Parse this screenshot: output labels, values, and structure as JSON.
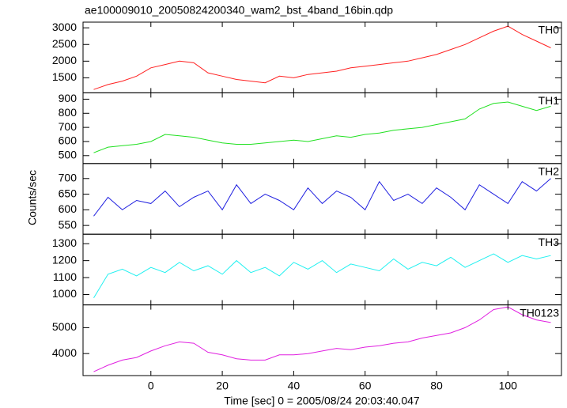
{
  "title": "ae100009010_20050824200340_wam2_bst_4band_16bin.qdp",
  "x_label": "Time [sec] 0 = 2005/08/24 20:03:40.047",
  "y_label": "Counts/sec",
  "chart_data": [
    {
      "type": "line",
      "label": "TH0",
      "color": "#ff2020",
      "x": [
        -16,
        -12,
        -8,
        -4,
        0,
        4,
        8,
        12,
        16,
        20,
        24,
        28,
        32,
        36,
        40,
        44,
        48,
        52,
        56,
        60,
        64,
        68,
        72,
        76,
        80,
        84,
        88,
        92,
        96,
        100,
        104,
        108,
        112
      ],
      "values": [
        1150,
        1300,
        1400,
        1550,
        1800,
        1900,
        2000,
        1950,
        1650,
        1550,
        1450,
        1400,
        1350,
        1550,
        1500,
        1600,
        1650,
        1700,
        1800,
        1850,
        1900,
        1950,
        2000,
        2100,
        2200,
        2350,
        2500,
        2700,
        2900,
        3050,
        2800,
        2600,
        2400
      ],
      "xlim": [
        -19,
        115
      ],
      "ylim": [
        1050,
        3170
      ],
      "yticks": [
        1500,
        2000,
        2500,
        3000
      ]
    },
    {
      "type": "line",
      "label": "TH1",
      "color": "#20e020",
      "x": [
        -16,
        -12,
        -8,
        -4,
        0,
        4,
        8,
        12,
        16,
        20,
        24,
        28,
        32,
        36,
        40,
        44,
        48,
        52,
        56,
        60,
        64,
        68,
        72,
        76,
        80,
        84,
        88,
        92,
        96,
        100,
        104,
        108,
        112
      ],
      "values": [
        520,
        560,
        570,
        580,
        600,
        650,
        640,
        630,
        610,
        590,
        580,
        580,
        590,
        600,
        610,
        600,
        620,
        640,
        630,
        650,
        660,
        680,
        690,
        700,
        720,
        740,
        760,
        830,
        870,
        880,
        850,
        820,
        850
      ],
      "xlim": [
        -19,
        115
      ],
      "ylim": [
        444,
        945
      ],
      "yticks": [
        500,
        600,
        700,
        800,
        900
      ]
    },
    {
      "type": "line",
      "label": "TH2",
      "color": "#2020e0",
      "x": [
        -16,
        -12,
        -8,
        -4,
        0,
        4,
        8,
        12,
        16,
        20,
        24,
        28,
        32,
        36,
        40,
        44,
        48,
        52,
        56,
        60,
        64,
        68,
        72,
        76,
        80,
        84,
        88,
        92,
        96,
        100,
        104,
        108,
        112
      ],
      "values": [
        580,
        640,
        600,
        630,
        620,
        660,
        610,
        640,
        660,
        600,
        680,
        620,
        650,
        630,
        600,
        670,
        620,
        660,
        640,
        600,
        690,
        630,
        650,
        620,
        670,
        640,
        600,
        680,
        650,
        620,
        690,
        660,
        700
      ],
      "xlim": [
        -19,
        115
      ],
      "ylim": [
        522,
        748
      ],
      "yticks": [
        550,
        600,
        650,
        700
      ]
    },
    {
      "type": "line",
      "label": "TH3",
      "color": "#20f0f0",
      "x": [
        -16,
        -12,
        -8,
        -4,
        0,
        4,
        8,
        12,
        16,
        20,
        24,
        28,
        32,
        36,
        40,
        44,
        48,
        52,
        56,
        60,
        64,
        68,
        72,
        76,
        80,
        84,
        88,
        92,
        96,
        100,
        104,
        108,
        112
      ],
      "values": [
        980,
        1120,
        1150,
        1110,
        1160,
        1130,
        1190,
        1140,
        1170,
        1120,
        1200,
        1130,
        1160,
        1110,
        1190,
        1150,
        1200,
        1130,
        1180,
        1160,
        1140,
        1210,
        1150,
        1190,
        1170,
        1220,
        1160,
        1200,
        1240,
        1190,
        1230,
        1210,
        1230
      ],
      "xlim": [
        -19,
        115
      ],
      "ylim": [
        939,
        1356
      ],
      "yticks": [
        1000,
        1100,
        1200,
        1300
      ]
    },
    {
      "type": "line",
      "label": "TH0123",
      "color": "#e020e0",
      "x": [
        -16,
        -12,
        -8,
        -4,
        0,
        4,
        8,
        12,
        16,
        20,
        24,
        28,
        32,
        36,
        40,
        44,
        48,
        52,
        56,
        60,
        64,
        68,
        72,
        76,
        80,
        84,
        88,
        92,
        96,
        100,
        104,
        108,
        112
      ],
      "values": [
        3300,
        3550,
        3750,
        3850,
        4100,
        4300,
        4450,
        4400,
        4050,
        3950,
        3800,
        3750,
        3750,
        3950,
        3950,
        4000,
        4100,
        4200,
        4150,
        4250,
        4300,
        4400,
        4450,
        4600,
        4700,
        4800,
        5000,
        5300,
        5700,
        5800,
        5500,
        5300,
        5200
      ],
      "xlim": [
        -19,
        115
      ],
      "ylim": [
        3150,
        5880
      ],
      "yticks": [
        4000,
        5000
      ],
      "xticks": [
        0,
        20,
        40,
        60,
        80,
        100
      ]
    }
  ]
}
